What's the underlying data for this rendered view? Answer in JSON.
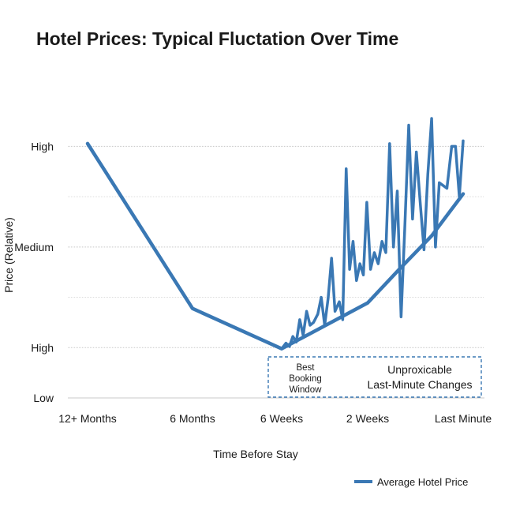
{
  "chart_data": {
    "type": "line",
    "title": "Hotel Prices: Typical Fluctation Over Time",
    "xlabel": "Time Before Stay",
    "ylabel": "Price (Relative)",
    "categories": [
      "12+ Months",
      "6 Months",
      "6 Weeks",
      "2 Weeks",
      "Last Minute"
    ],
    "y_ticks": [
      "High",
      "Medium",
      "High",
      "Low"
    ],
    "xlim": [
      0,
      4
    ],
    "ylim": [
      0,
      5
    ],
    "grid": true,
    "legend_position": "bottom-right",
    "colors": {
      "series": "#3a78b4",
      "grid": "#c8c8c8",
      "annotation": "#3a78b4"
    },
    "series": [
      {
        "name": "Average Hotel Price",
        "x": [
          0,
          1,
          2,
          3,
          3.33,
          3.67,
          4
        ],
        "y": [
          4.55,
          1.6,
          0.88,
          1.7,
          2.3,
          2.9,
          3.65
        ]
      }
    ],
    "volatile_series": {
      "x": [
        2,
        2.05,
        2.09,
        2.13,
        2.17,
        2.21,
        2.25,
        2.29,
        2.33,
        2.37,
        2.42,
        2.46,
        2.5,
        2.54,
        2.58,
        2.62,
        2.67,
        2.71,
        2.75,
        2.79,
        2.83,
        2.87,
        2.91,
        2.95,
        2.99,
        3.03,
        3.07,
        3.11,
        3.15,
        3.19,
        3.23,
        3.27,
        3.31,
        3.35,
        3.39,
        3.43,
        3.47,
        3.51,
        3.55,
        3.59,
        3.63,
        3.67,
        3.71,
        3.75,
        3.79,
        3.83,
        3.88,
        3.92,
        3.96,
        4.0
      ],
      "y": [
        0.88,
        0.98,
        0.92,
        1.1,
        1.0,
        1.4,
        1.12,
        1.55,
        1.3,
        1.35,
        1.5,
        1.8,
        1.3,
        1.78,
        2.5,
        1.55,
        1.72,
        1.4,
        4.1,
        2.3,
        2.8,
        2.1,
        2.4,
        2.2,
        3.5,
        2.3,
        2.6,
        2.4,
        2.8,
        2.6,
        4.55,
        2.7,
        3.7,
        1.45,
        3.1,
        4.88,
        3.2,
        4.4,
        3.5,
        2.65,
        4.0,
        5.0,
        2.7,
        3.85,
        3.8,
        3.75,
        4.5,
        4.5,
        3.6,
        4.6
      ]
    },
    "annotation": {
      "left": [
        "Best",
        "Booking",
        "Window"
      ],
      "right": [
        "Unproxicable",
        "Last-Minute Changes"
      ]
    }
  }
}
